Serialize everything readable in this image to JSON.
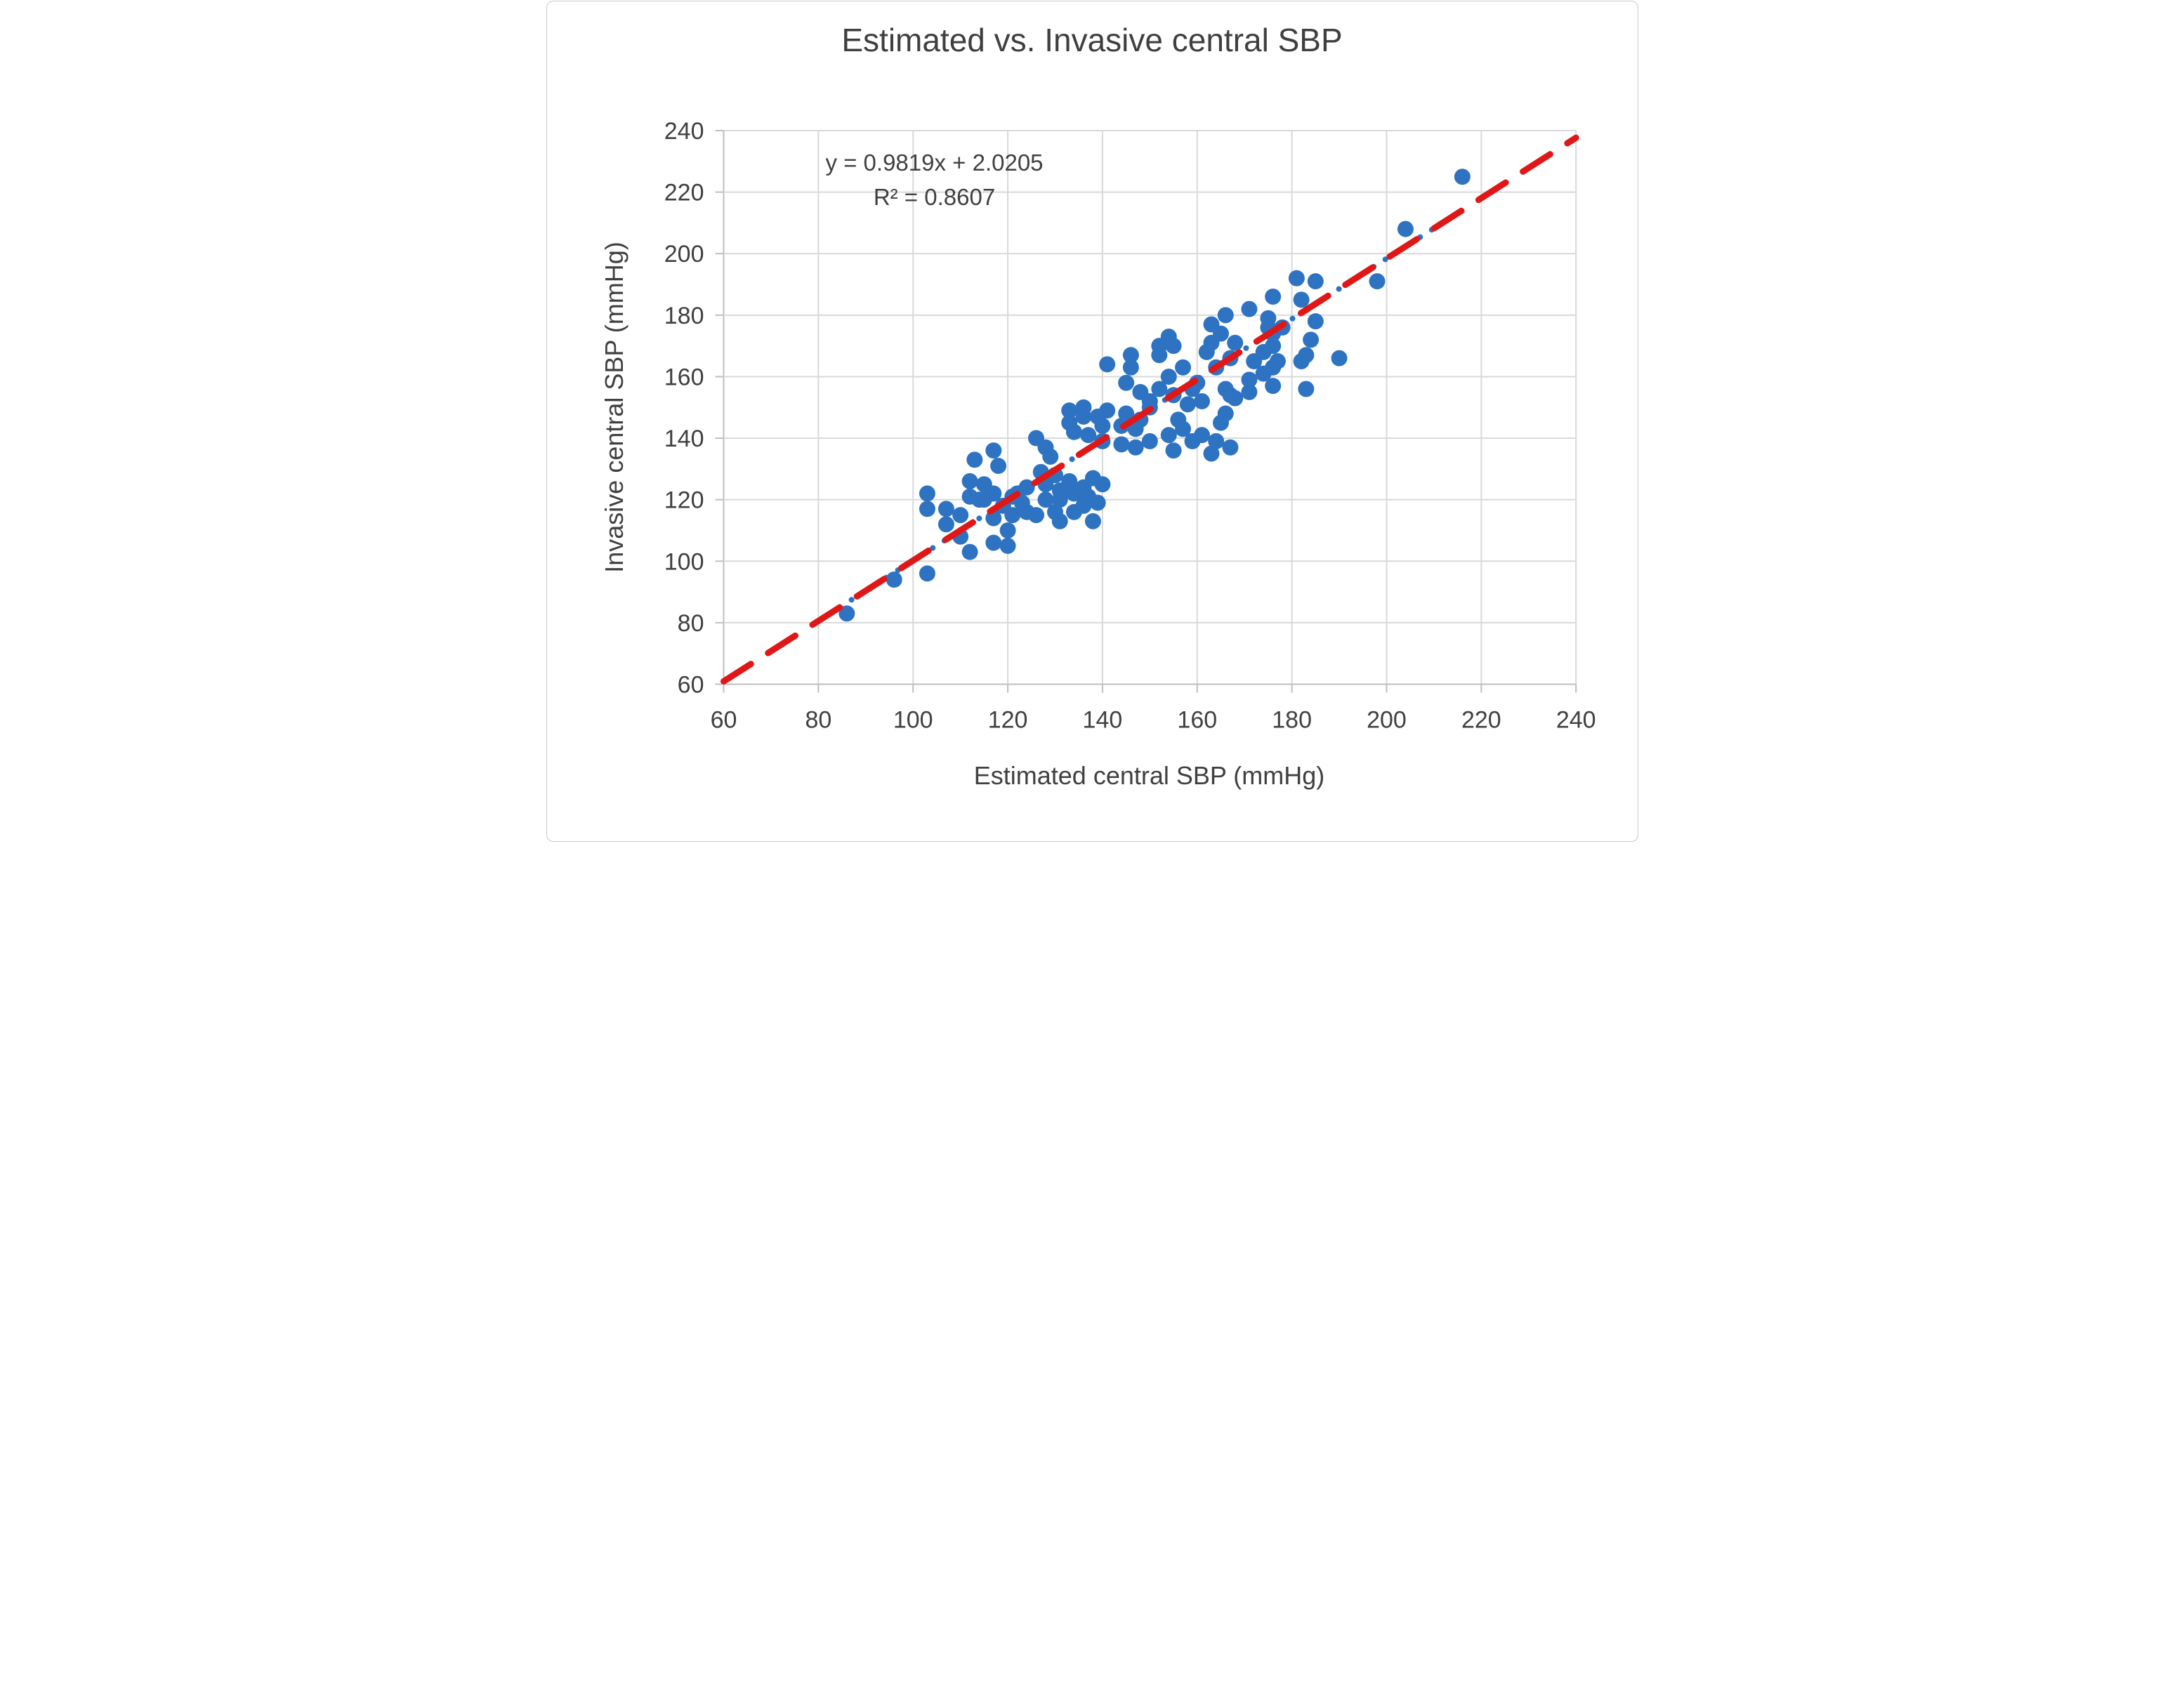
{
  "figure": {
    "title": "Estimated vs. Invasive central SBP"
  },
  "chart_data": {
    "type": "scatter",
    "title": "Estimated vs. Invasive central SBP",
    "xlabel": "Estimated central SBP (mmHg)",
    "ylabel": "Invasive central SBP (mmHg)",
    "xlim": [
      60,
      240
    ],
    "ylim": [
      60,
      240
    ],
    "x_ticks": [
      60,
      80,
      100,
      120,
      140,
      160,
      180,
      200,
      220,
      240
    ],
    "y_ticks": [
      60,
      80,
      100,
      120,
      140,
      160,
      180,
      200,
      220,
      240
    ],
    "grid": true,
    "legend": "none",
    "annotation": {
      "equation": "y = 0.9819x + 2.0205",
      "r_squared": "R² = 0.8607"
    },
    "trendline_red_dashed": {
      "slope": 0.9819,
      "intercept": 2.0205,
      "x_range": [
        60,
        240
      ],
      "color": "#e01717"
    },
    "trendline_blue_dotted": {
      "slope": 0.9819,
      "intercept": 2.0205,
      "x_range": [
        87,
        216
      ],
      "color": "#2e73c2"
    },
    "series": [
      {
        "name": "Estimated vs invasive central SBP",
        "marker_color": "#2e73c2",
        "points": [
          [
            86,
            83
          ],
          [
            96,
            94
          ],
          [
            103,
            96
          ],
          [
            103,
            117
          ],
          [
            103,
            122
          ],
          [
            107,
            112
          ],
          [
            107,
            117
          ],
          [
            110,
            108
          ],
          [
            110,
            115
          ],
          [
            112,
            103
          ],
          [
            112,
            121
          ],
          [
            112,
            126
          ],
          [
            113,
            133
          ],
          [
            114,
            120
          ],
          [
            115,
            120
          ],
          [
            115,
            125
          ],
          [
            117,
            106
          ],
          [
            117,
            114
          ],
          [
            117,
            122
          ],
          [
            117,
            136
          ],
          [
            118,
            131
          ],
          [
            119,
            118
          ],
          [
            120,
            105
          ],
          [
            120,
            110
          ],
          [
            121,
            115
          ],
          [
            121,
            121
          ],
          [
            122,
            122
          ],
          [
            123,
            119
          ],
          [
            124,
            116
          ],
          [
            124,
            124
          ],
          [
            126,
            115
          ],
          [
            126,
            140
          ],
          [
            127,
            129
          ],
          [
            128,
            120
          ],
          [
            128,
            125
          ],
          [
            128,
            137
          ],
          [
            129,
            134
          ],
          [
            130,
            116
          ],
          [
            130,
            128
          ],
          [
            131,
            113
          ],
          [
            131,
            120
          ],
          [
            131,
            123
          ],
          [
            133,
            126
          ],
          [
            133,
            145
          ],
          [
            133,
            149
          ],
          [
            134,
            116
          ],
          [
            134,
            122
          ],
          [
            134,
            142
          ],
          [
            136,
            118
          ],
          [
            136,
            124
          ],
          [
            136,
            147
          ],
          [
            136,
            150
          ],
          [
            137,
            121
          ],
          [
            137,
            141
          ],
          [
            138,
            113
          ],
          [
            138,
            127
          ],
          [
            139,
            119
          ],
          [
            139,
            147
          ],
          [
            140,
            125
          ],
          [
            140,
            139
          ],
          [
            140,
            144
          ],
          [
            141,
            149
          ],
          [
            141,
            164
          ],
          [
            144,
            138
          ],
          [
            144,
            144
          ],
          [
            145,
            148
          ],
          [
            145,
            158
          ],
          [
            146,
            163
          ],
          [
            146,
            167
          ],
          [
            147,
            137
          ],
          [
            147,
            143
          ],
          [
            148,
            146
          ],
          [
            148,
            155
          ],
          [
            150,
            139
          ],
          [
            150,
            150
          ],
          [
            150,
            152
          ],
          [
            152,
            156
          ],
          [
            152,
            167
          ],
          [
            152,
            170
          ],
          [
            154,
            141
          ],
          [
            154,
            160
          ],
          [
            154,
            173
          ],
          [
            155,
            136
          ],
          [
            155,
            154
          ],
          [
            155,
            170
          ],
          [
            156,
            146
          ],
          [
            157,
            143
          ],
          [
            157,
            163
          ],
          [
            158,
            151
          ],
          [
            159,
            139
          ],
          [
            159,
            156
          ],
          [
            160,
            158
          ],
          [
            161,
            141
          ],
          [
            161,
            152
          ],
          [
            162,
            168
          ],
          [
            163,
            135
          ],
          [
            163,
            171
          ],
          [
            163,
            177
          ],
          [
            164,
            139
          ],
          [
            164,
            163
          ],
          [
            165,
            145
          ],
          [
            165,
            174
          ],
          [
            166,
            148
          ],
          [
            166,
            156
          ],
          [
            166,
            180
          ],
          [
            167,
            137
          ],
          [
            167,
            154
          ],
          [
            167,
            166
          ],
          [
            168,
            153
          ],
          [
            168,
            171
          ],
          [
            171,
            155
          ],
          [
            171,
            159
          ],
          [
            171,
            182
          ],
          [
            172,
            165
          ],
          [
            174,
            161
          ],
          [
            174,
            168
          ],
          [
            175,
            176
          ],
          [
            175,
            179
          ],
          [
            176,
            157
          ],
          [
            176,
            163
          ],
          [
            176,
            170
          ],
          [
            176,
            174
          ],
          [
            176,
            186
          ],
          [
            177,
            165
          ],
          [
            178,
            176
          ],
          [
            181,
            192
          ],
          [
            182,
            165
          ],
          [
            182,
            185
          ],
          [
            183,
            156
          ],
          [
            183,
            167
          ],
          [
            184,
            172
          ],
          [
            185,
            178
          ],
          [
            185,
            191
          ],
          [
            190,
            166
          ],
          [
            198,
            191
          ],
          [
            204,
            208
          ],
          [
            216,
            225
          ]
        ]
      }
    ],
    "colors": {
      "marker": "#2e73c2",
      "trend_red": "#e01717",
      "trend_blue": "#2e73c2",
      "gridline": "#d9d9d9",
      "axis_line": "#bfbfbf",
      "tick_text": "#404040",
      "title_text": "#3f3f3f"
    }
  }
}
